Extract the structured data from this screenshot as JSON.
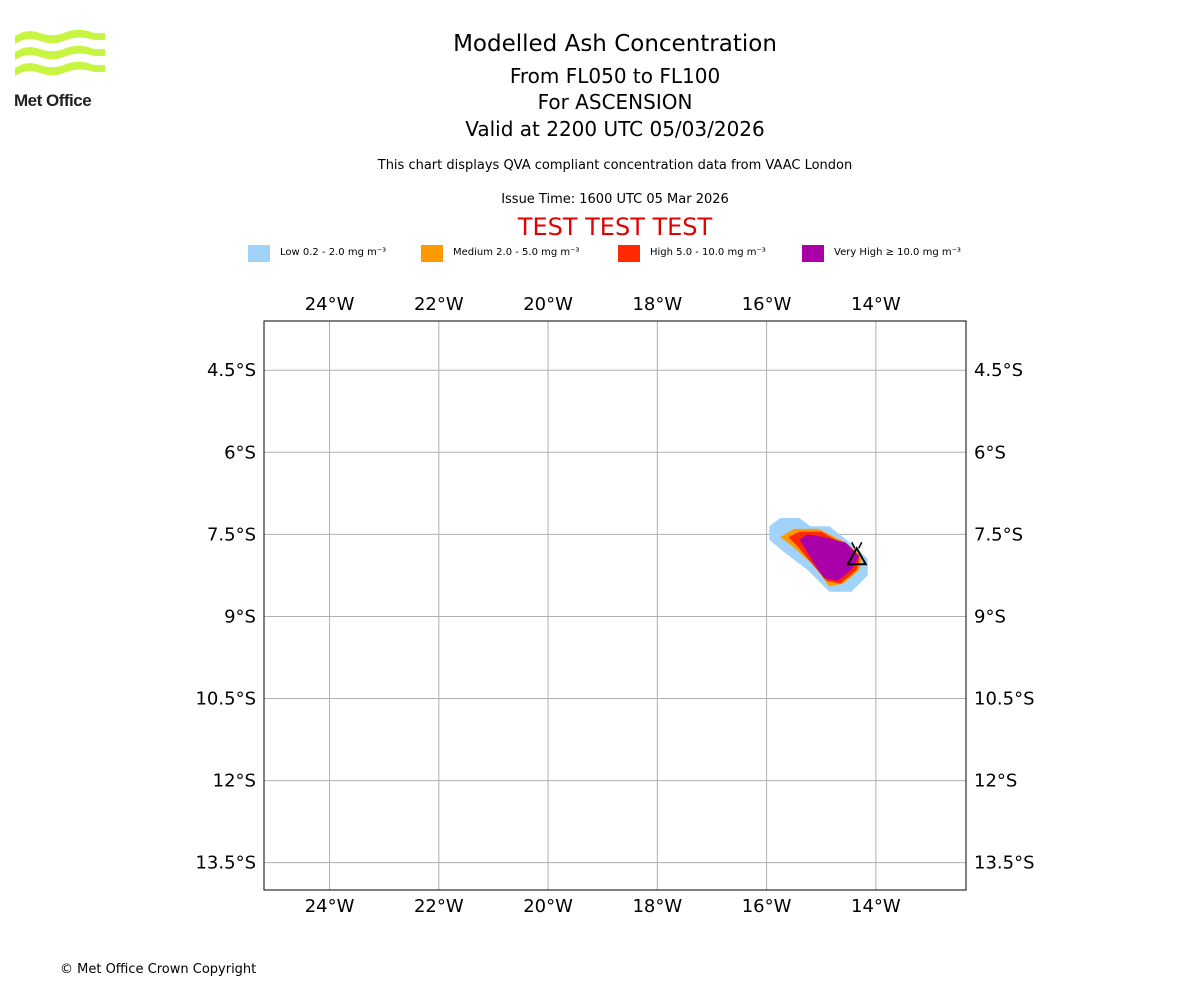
{
  "header": {
    "brand": "Met Office",
    "title": "Modelled Ash Concentration",
    "levels": "From FL050 to FL100",
    "location": "For ASCENSION",
    "valid": "Valid at 2200 UTC 05/03/2026",
    "compliance": "This chart displays QVA compliant concentration data from VAAC London",
    "issue_time": "Issue Time: 1600 UTC 05 Mar 2026",
    "test_banner": "TEST TEST TEST"
  },
  "legend": [
    {
      "label": "Low 0.2 - 2.0 mg m⁻³",
      "color": "#a0d2fa"
    },
    {
      "label": "Medium 2.0 - 5.0 mg m⁻³",
      "color": "#ff9900"
    },
    {
      "label": "High 5.0 - 10.0 mg m⁻³",
      "color": "#ff2a00"
    },
    {
      "label": "Very High ≥ 10.0 mg m⁻³",
      "color": "#aa00aa"
    }
  ],
  "footer": {
    "copyright": "© Met Office Crown Copyright"
  },
  "chart_data": {
    "type": "map",
    "extent": {
      "lon": [
        -25.2,
        -12.35
      ],
      "lat": [
        -14.0,
        -3.6
      ]
    },
    "x_ticks": [
      {
        "value": -24,
        "label": "24°W"
      },
      {
        "value": -22,
        "label": "22°W"
      },
      {
        "value": -20,
        "label": "20°W"
      },
      {
        "value": -18,
        "label": "18°W"
      },
      {
        "value": -16,
        "label": "16°W"
      },
      {
        "value": -14,
        "label": "14°W"
      }
    ],
    "y_ticks": [
      {
        "value": -4.5,
        "label": "4.5°S"
      },
      {
        "value": -6,
        "label": "6°S"
      },
      {
        "value": -7.5,
        "label": "7.5°S"
      },
      {
        "value": -9,
        "label": "9°S"
      },
      {
        "value": -10.5,
        "label": "10.5°S"
      },
      {
        "value": -12,
        "label": "12°S"
      },
      {
        "value": -13.5,
        "label": "13.5°S"
      }
    ],
    "grid": true,
    "ash_regions": [
      {
        "level": "Low",
        "color": "#a0d2fa",
        "polygon": [
          [
            -15.95,
            -7.35
          ],
          [
            -15.75,
            -7.2
          ],
          [
            -15.4,
            -7.2
          ],
          [
            -15.2,
            -7.35
          ],
          [
            -14.85,
            -7.35
          ],
          [
            -14.6,
            -7.55
          ],
          [
            -14.35,
            -7.75
          ],
          [
            -14.15,
            -7.95
          ],
          [
            -14.15,
            -8.25
          ],
          [
            -14.45,
            -8.55
          ],
          [
            -14.85,
            -8.55
          ],
          [
            -15.25,
            -8.15
          ],
          [
            -15.65,
            -7.85
          ],
          [
            -15.95,
            -7.6
          ]
        ]
      },
      {
        "level": "Medium",
        "color": "#ff9900",
        "polygon": [
          [
            -15.75,
            -7.55
          ],
          [
            -15.5,
            -7.4
          ],
          [
            -15.05,
            -7.4
          ],
          [
            -14.55,
            -7.65
          ],
          [
            -14.25,
            -7.9
          ],
          [
            -14.3,
            -8.15
          ],
          [
            -14.6,
            -8.4
          ],
          [
            -14.85,
            -8.45
          ],
          [
            -15.15,
            -8.05
          ],
          [
            -15.55,
            -7.7
          ]
        ]
      },
      {
        "level": "High",
        "color": "#ff2a00",
        "polygon": [
          [
            -15.6,
            -7.55
          ],
          [
            -15.4,
            -7.45
          ],
          [
            -15.0,
            -7.45
          ],
          [
            -14.55,
            -7.7
          ],
          [
            -14.3,
            -7.95
          ],
          [
            -14.35,
            -8.15
          ],
          [
            -14.65,
            -8.4
          ],
          [
            -14.9,
            -8.35
          ],
          [
            -15.2,
            -8.0
          ],
          [
            -15.45,
            -7.7
          ]
        ]
      },
      {
        "level": "Very High",
        "color": "#aa00aa",
        "polygon": [
          [
            -15.4,
            -7.6
          ],
          [
            -15.25,
            -7.5
          ],
          [
            -14.95,
            -7.55
          ],
          [
            -14.55,
            -7.65
          ],
          [
            -14.3,
            -7.9
          ],
          [
            -14.45,
            -8.15
          ],
          [
            -14.7,
            -8.35
          ],
          [
            -14.95,
            -8.3
          ],
          [
            -15.15,
            -8.0
          ],
          [
            -15.3,
            -7.75
          ]
        ]
      }
    ],
    "volcano": {
      "name": "ASCENSION",
      "lon": -14.35,
      "lat": -7.9
    }
  }
}
